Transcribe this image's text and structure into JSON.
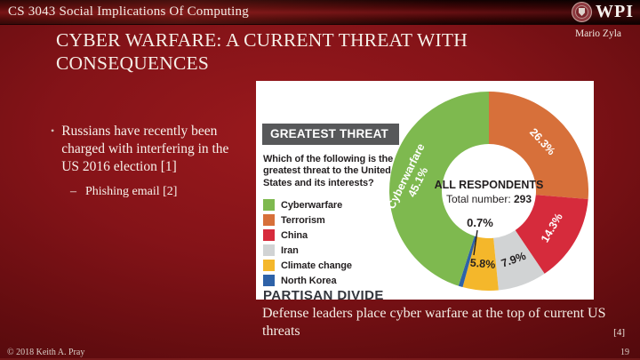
{
  "slide": {
    "header": {
      "course": "CS 3043 Social Implications Of Computing",
      "logo_text": "WPI"
    },
    "author": "Mario Zyla",
    "title": "CYBER WARFARE: A CURRENT THREAT WITH CONSEQUENCES",
    "bullets": {
      "dot": "•",
      "main": "Russians have recently been charged with interfering in the US 2016 election [1]",
      "sub_dash": "–",
      "sub": "Phishing email [2]"
    },
    "caption": "Defense leaders place cyber warfare at the top of current US threats",
    "citation": "[4]",
    "footer": {
      "copyright": "© 2018 Keith A. Pray",
      "page_number": "19"
    }
  },
  "chart_data": {
    "type": "pie",
    "subtype": "donut",
    "title": "GREATEST THREAT",
    "question": "Which of the following is the greatest threat to the United States and its interests?",
    "center_label": "ALL RESPONDENTS",
    "center_sublabel": "Total number:",
    "center_total": "293",
    "footer_heading": "PARTISAN DIVIDE",
    "start_angle_deg": 0,
    "clockwise": true,
    "slices": [
      {
        "name": "Terrorism",
        "pct": 26.3,
        "color": "#d7703a",
        "label": "26.3%",
        "label_color": "#ffffff"
      },
      {
        "name": "China",
        "pct": 14.3,
        "color": "#d62b3c",
        "label": "14.3%",
        "label_color": "#ffffff"
      },
      {
        "name": "Iran",
        "pct": 7.9,
        "color": "#d1d3d4",
        "label": "7.9%",
        "label_color": "#231f20"
      },
      {
        "name": "Climate change",
        "pct": 5.8,
        "color": "#f4b72b",
        "label": "5.8%",
        "label_color": "#231f20"
      },
      {
        "name": "North Korea",
        "pct": 0.7,
        "color": "#2e62a8",
        "label": "0.7%",
        "label_color": "#231f20",
        "callout": true
      },
      {
        "name": "Cyberwarfare",
        "pct": 45.1,
        "color": "#7eb94f",
        "label": "45.1%",
        "label_color": "#ffffff",
        "show_name_in_label": true,
        "label_rotation": -64,
        "label_radius": 88
      }
    ],
    "legend_order": [
      "Cyberwarfare",
      "Terrorism",
      "China",
      "Iran",
      "Climate change",
      "North Korea"
    ]
  }
}
